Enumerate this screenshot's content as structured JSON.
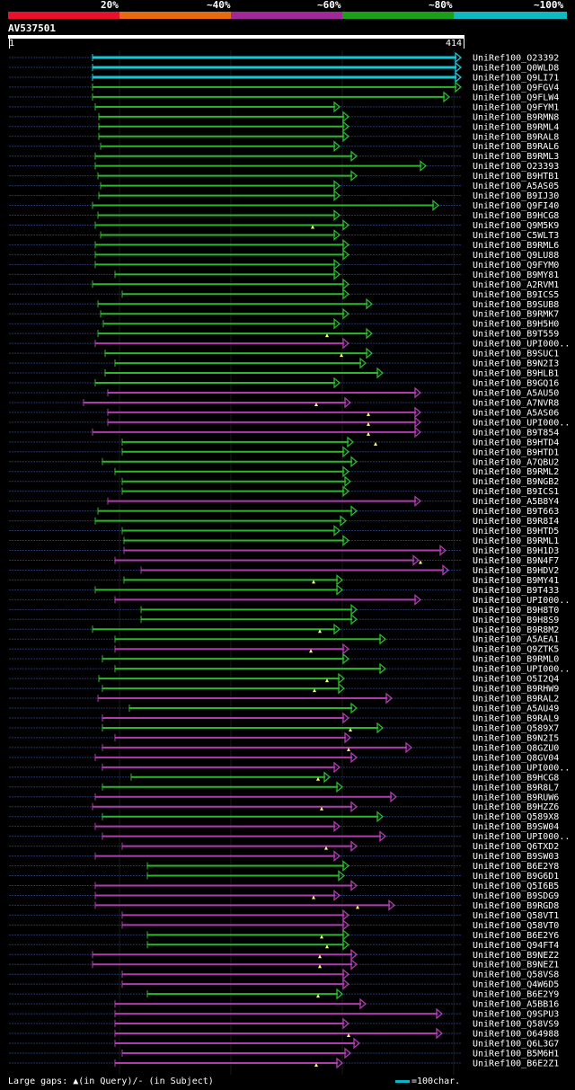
{
  "legend": {
    "labels": [
      "20%",
      "~40%",
      "~60%",
      "~80%",
      "~100%"
    ],
    "colors": [
      "#e8102a",
      "#e86a10",
      "#a02898",
      "#18a018",
      "#10b8c0"
    ]
  },
  "query": {
    "name": "AV537501",
    "start": "1",
    "end": "414"
  },
  "colors": {
    "green": "#2bb82b",
    "magenta": "#b03cb0",
    "cyan": "#14c8d8",
    "dotted": "#22346a"
  },
  "hits": [
    "UniRef100_O23392",
    "UniRef100_Q0WLD8",
    "UniRef100_Q9LI71",
    "UniRef100_Q9FGV4",
    "UniRef100_Q9FLW4",
    "UniRef100_Q9FYM1",
    "UniRef100_B9RMN8",
    "UniRef100_B9RML4",
    "UniRef100_B9RAL8",
    "UniRef100_B9RAL6",
    "UniRef100_B9RML3",
    "UniRef100_O23393",
    "UniRef100_B9HTB1",
    "UniRef100_A5AS05",
    "UniRef100_B9IJ30",
    "UniRef100_Q9FI40",
    "UniRef100_B9HCG8",
    "UniRef100_Q9M5K9",
    "UniRef100_C5WLT3",
    "UniRef100_B9RML6",
    "UniRef100_Q9LU88",
    "UniRef100_Q9FYM0",
    "UniRef100_B9MY81",
    "UniRef100_A2RVM1",
    "UniRef100_B9ICS5",
    "UniRef100_B9SUB8",
    "UniRef100_B9RMK7",
    "UniRef100_B9H5H0",
    "UniRef100_B9T559",
    "UniRef100_UPI000..",
    "UniRef100_B9SUC1",
    "UniRef100_B9N2I3",
    "UniRef100_B9HLB1",
    "UniRef100_B9GQ16",
    "UniRef100_A5AU50",
    "UniRef100_A7NVR8",
    "UniRef100_A5AS06",
    "UniRef100_UPI000..",
    "UniRef100_B9T854",
    "UniRef100_B9HTD4",
    "UniRef100_B9HTD1",
    "UniRef100_A7QBU2",
    "UniRef100_B9RML2",
    "UniRef100_B9NGB2",
    "UniRef100_B9ICS1",
    "UniRef100_A5B8Y4",
    "UniRef100_B9T663",
    "UniRef100_B9R8I4",
    "UniRef100_B9HTD5",
    "UniRef100_B9RML1",
    "UniRef100_B9H1D3",
    "UniRef100_B9N4F7",
    "UniRef100_B9HDV2",
    "UniRef100_B9MY41",
    "UniRef100_B9T433",
    "UniRef100_UPI000..",
    "UniRef100_B9H8T0",
    "UniRef100_B9H8S9",
    "UniRef100_B9R8M2",
    "UniRef100_A5AEA1",
    "UniRef100_Q9ZTK5",
    "UniRef100_B9RML0",
    "UniRef100_UPI000..",
    "UniRef100_O5I2Q4",
    "UniRef100_B9RHW9",
    "UniRef100_B9RAL2",
    "UniRef100_A5AU49",
    "UniRef100_B9RAL9",
    "UniRef100_Q589X7",
    "UniRef100_B9N2I5",
    "UniRef100_Q8GZU0",
    "UniRef100_Q8GV04",
    "UniRef100_UPI000..",
    "UniRef100_B9HCG8",
    "UniRef100_B9R8L7",
    "UniRef100_B9RUW6",
    "UniRef100_B9HZZ6",
    "UniRef100_Q589X8",
    "UniRef100_B9SW04",
    "UniRef100_UPI000..",
    "UniRef100_Q6TXD2",
    "UniRef100_B9SW03",
    "UniRef100_B6E2Y8",
    "UniRef100_B9G6D1",
    "UniRef100_Q5I6B5",
    "UniRef100_B9SDG9",
    "UniRef100_B9RGD8",
    "UniRef100_Q58VT1",
    "UniRef100_Q58VT0",
    "UniRef100_B6E2Y6",
    "UniRef100_Q94FT4",
    "UniRef100_B9NEZ2",
    "UniRef100_B9NEZ1",
    "UniRef100_Q58VS8",
    "UniRef100_Q4W6D5",
    "UniRef100_B6E2Y9",
    "UniRef100_A5BB16",
    "UniRef100_Q9SPU3",
    "UniRef100_Q58VS9",
    "UniRef100_O64988",
    "UniRef100_Q6L3G7",
    "UniRef100_B5M6H1",
    "UniRef100_B6E2Z1"
  ],
  "footer": {
    "gaps_text": "Large gaps: ▲(in Query)/- (in Subject)",
    "scale_text": "=100char."
  }
}
